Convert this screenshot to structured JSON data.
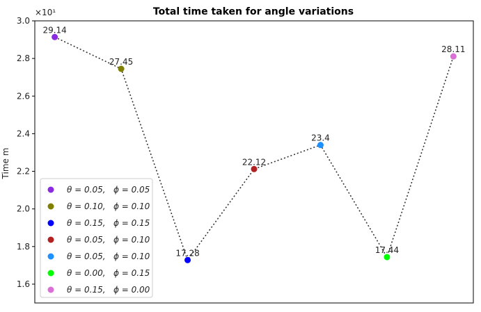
{
  "chart_data": {
    "type": "scatter",
    "title": "Total time taken for angle variations",
    "xlabel": "",
    "ylabel": "Time m",
    "y_multiplier": "×10¹",
    "ylim": [
      1.5,
      3.0
    ],
    "yticks": [
      "1.6",
      "1.8",
      "2.0",
      "2.2",
      "2.4",
      "2.6",
      "2.8",
      "3.0"
    ],
    "grid": false,
    "legend_position": "lower-left",
    "connected_by": "dotted line",
    "points": [
      {
        "x": 1,
        "y": 2.914,
        "label": "29.14",
        "color": "#8a2be2",
        "legend": "θ = 0.05,   ϕ = 0.05"
      },
      {
        "x": 2,
        "y": 2.745,
        "label": "27.45",
        "color": "#808000",
        "legend": "θ = 0.10,   ϕ = 0.10"
      },
      {
        "x": 3,
        "y": 1.728,
        "label": "17.28",
        "color": "#0000ff",
        "legend": "θ = 0.15,   ϕ = 0.15"
      },
      {
        "x": 4,
        "y": 2.212,
        "label": "22.12",
        "color": "#b22222",
        "legend": "θ = 0.05,   ϕ = 0.10"
      },
      {
        "x": 5,
        "y": 2.34,
        "label": "23.4",
        "color": "#1e90ff",
        "legend": "θ = 0.05,   ϕ = 0.10"
      },
      {
        "x": 6,
        "y": 1.744,
        "label": "17.44",
        "color": "#00ff00",
        "legend": "θ = 0.00,   ϕ = 0.15"
      },
      {
        "x": 7,
        "y": 2.811,
        "label": "28.11",
        "color": "#da70d6",
        "legend": "θ = 0.15,   ϕ = 0.00"
      }
    ]
  }
}
